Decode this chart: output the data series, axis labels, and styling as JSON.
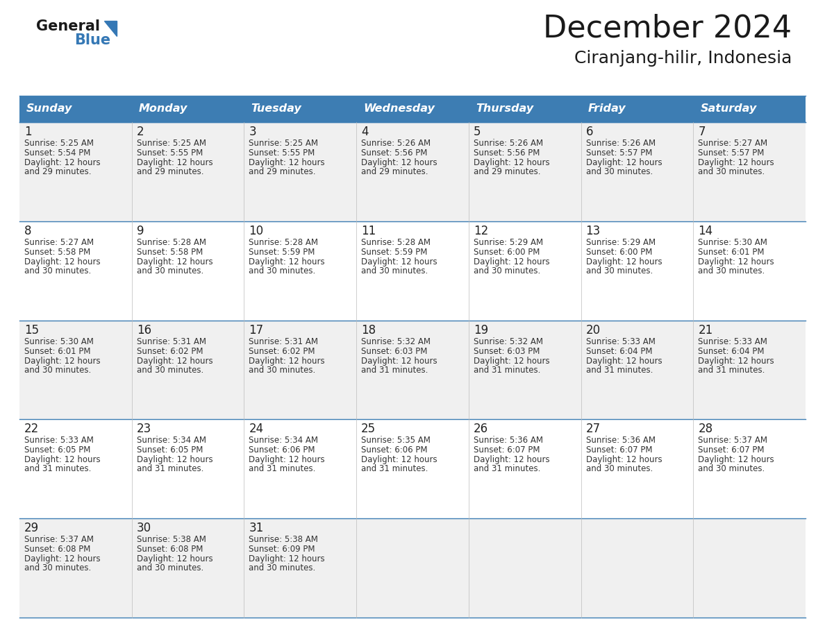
{
  "title": "December 2024",
  "subtitle": "Ciranjang-hilir, Indonesia",
  "days_of_week": [
    "Sunday",
    "Monday",
    "Tuesday",
    "Wednesday",
    "Thursday",
    "Friday",
    "Saturday"
  ],
  "header_bg": "#3d7db3",
  "header_text": "#ffffff",
  "row_bg_odd": "#f0f0f0",
  "row_bg_even": "#ffffff",
  "cell_text": "#333333",
  "day_num_color": "#222222",
  "grid_line_color": "#3d7db3",
  "title_color": "#1a1a1a",
  "subtitle_color": "#1a1a1a",
  "logo_general_color": "#1a1a1a",
  "logo_blue_color": "#3578b5",
  "weeks": [
    {
      "days": [
        {
          "date": 1,
          "sunrise": "5:25 AM",
          "sunset": "5:54 PM",
          "daylight_min": "29"
        },
        {
          "date": 2,
          "sunrise": "5:25 AM",
          "sunset": "5:55 PM",
          "daylight_min": "29"
        },
        {
          "date": 3,
          "sunrise": "5:25 AM",
          "sunset": "5:55 PM",
          "daylight_min": "29"
        },
        {
          "date": 4,
          "sunrise": "5:26 AM",
          "sunset": "5:56 PM",
          "daylight_min": "29"
        },
        {
          "date": 5,
          "sunrise": "5:26 AM",
          "sunset": "5:56 PM",
          "daylight_min": "29"
        },
        {
          "date": 6,
          "sunrise": "5:26 AM",
          "sunset": "5:57 PM",
          "daylight_min": "30"
        },
        {
          "date": 7,
          "sunrise": "5:27 AM",
          "sunset": "5:57 PM",
          "daylight_min": "30"
        }
      ]
    },
    {
      "days": [
        {
          "date": 8,
          "sunrise": "5:27 AM",
          "sunset": "5:58 PM",
          "daylight_min": "30"
        },
        {
          "date": 9,
          "sunrise": "5:28 AM",
          "sunset": "5:58 PM",
          "daylight_min": "30"
        },
        {
          "date": 10,
          "sunrise": "5:28 AM",
          "sunset": "5:59 PM",
          "daylight_min": "30"
        },
        {
          "date": 11,
          "sunrise": "5:28 AM",
          "sunset": "5:59 PM",
          "daylight_min": "30"
        },
        {
          "date": 12,
          "sunrise": "5:29 AM",
          "sunset": "6:00 PM",
          "daylight_min": "30"
        },
        {
          "date": 13,
          "sunrise": "5:29 AM",
          "sunset": "6:00 PM",
          "daylight_min": "30"
        },
        {
          "date": 14,
          "sunrise": "5:30 AM",
          "sunset": "6:01 PM",
          "daylight_min": "30"
        }
      ]
    },
    {
      "days": [
        {
          "date": 15,
          "sunrise": "5:30 AM",
          "sunset": "6:01 PM",
          "daylight_min": "30"
        },
        {
          "date": 16,
          "sunrise": "5:31 AM",
          "sunset": "6:02 PM",
          "daylight_min": "30"
        },
        {
          "date": 17,
          "sunrise": "5:31 AM",
          "sunset": "6:02 PM",
          "daylight_min": "30"
        },
        {
          "date": 18,
          "sunrise": "5:32 AM",
          "sunset": "6:03 PM",
          "daylight_min": "31"
        },
        {
          "date": 19,
          "sunrise": "5:32 AM",
          "sunset": "6:03 PM",
          "daylight_min": "31"
        },
        {
          "date": 20,
          "sunrise": "5:33 AM",
          "sunset": "6:04 PM",
          "daylight_min": "31"
        },
        {
          "date": 21,
          "sunrise": "5:33 AM",
          "sunset": "6:04 PM",
          "daylight_min": "31"
        }
      ]
    },
    {
      "days": [
        {
          "date": 22,
          "sunrise": "5:33 AM",
          "sunset": "6:05 PM",
          "daylight_min": "31"
        },
        {
          "date": 23,
          "sunrise": "5:34 AM",
          "sunset": "6:05 PM",
          "daylight_min": "31"
        },
        {
          "date": 24,
          "sunrise": "5:34 AM",
          "sunset": "6:06 PM",
          "daylight_min": "31"
        },
        {
          "date": 25,
          "sunrise": "5:35 AM",
          "sunset": "6:06 PM",
          "daylight_min": "31"
        },
        {
          "date": 26,
          "sunrise": "5:36 AM",
          "sunset": "6:07 PM",
          "daylight_min": "31"
        },
        {
          "date": 27,
          "sunrise": "5:36 AM",
          "sunset": "6:07 PM",
          "daylight_min": "30"
        },
        {
          "date": 28,
          "sunrise": "5:37 AM",
          "sunset": "6:07 PM",
          "daylight_min": "30"
        }
      ]
    },
    {
      "days": [
        {
          "date": 29,
          "sunrise": "5:37 AM",
          "sunset": "6:08 PM",
          "daylight_min": "30"
        },
        {
          "date": 30,
          "sunrise": "5:38 AM",
          "sunset": "6:08 PM",
          "daylight_min": "30"
        },
        {
          "date": 31,
          "sunrise": "5:38 AM",
          "sunset": "6:09 PM",
          "daylight_min": "30"
        },
        null,
        null,
        null,
        null
      ]
    }
  ]
}
